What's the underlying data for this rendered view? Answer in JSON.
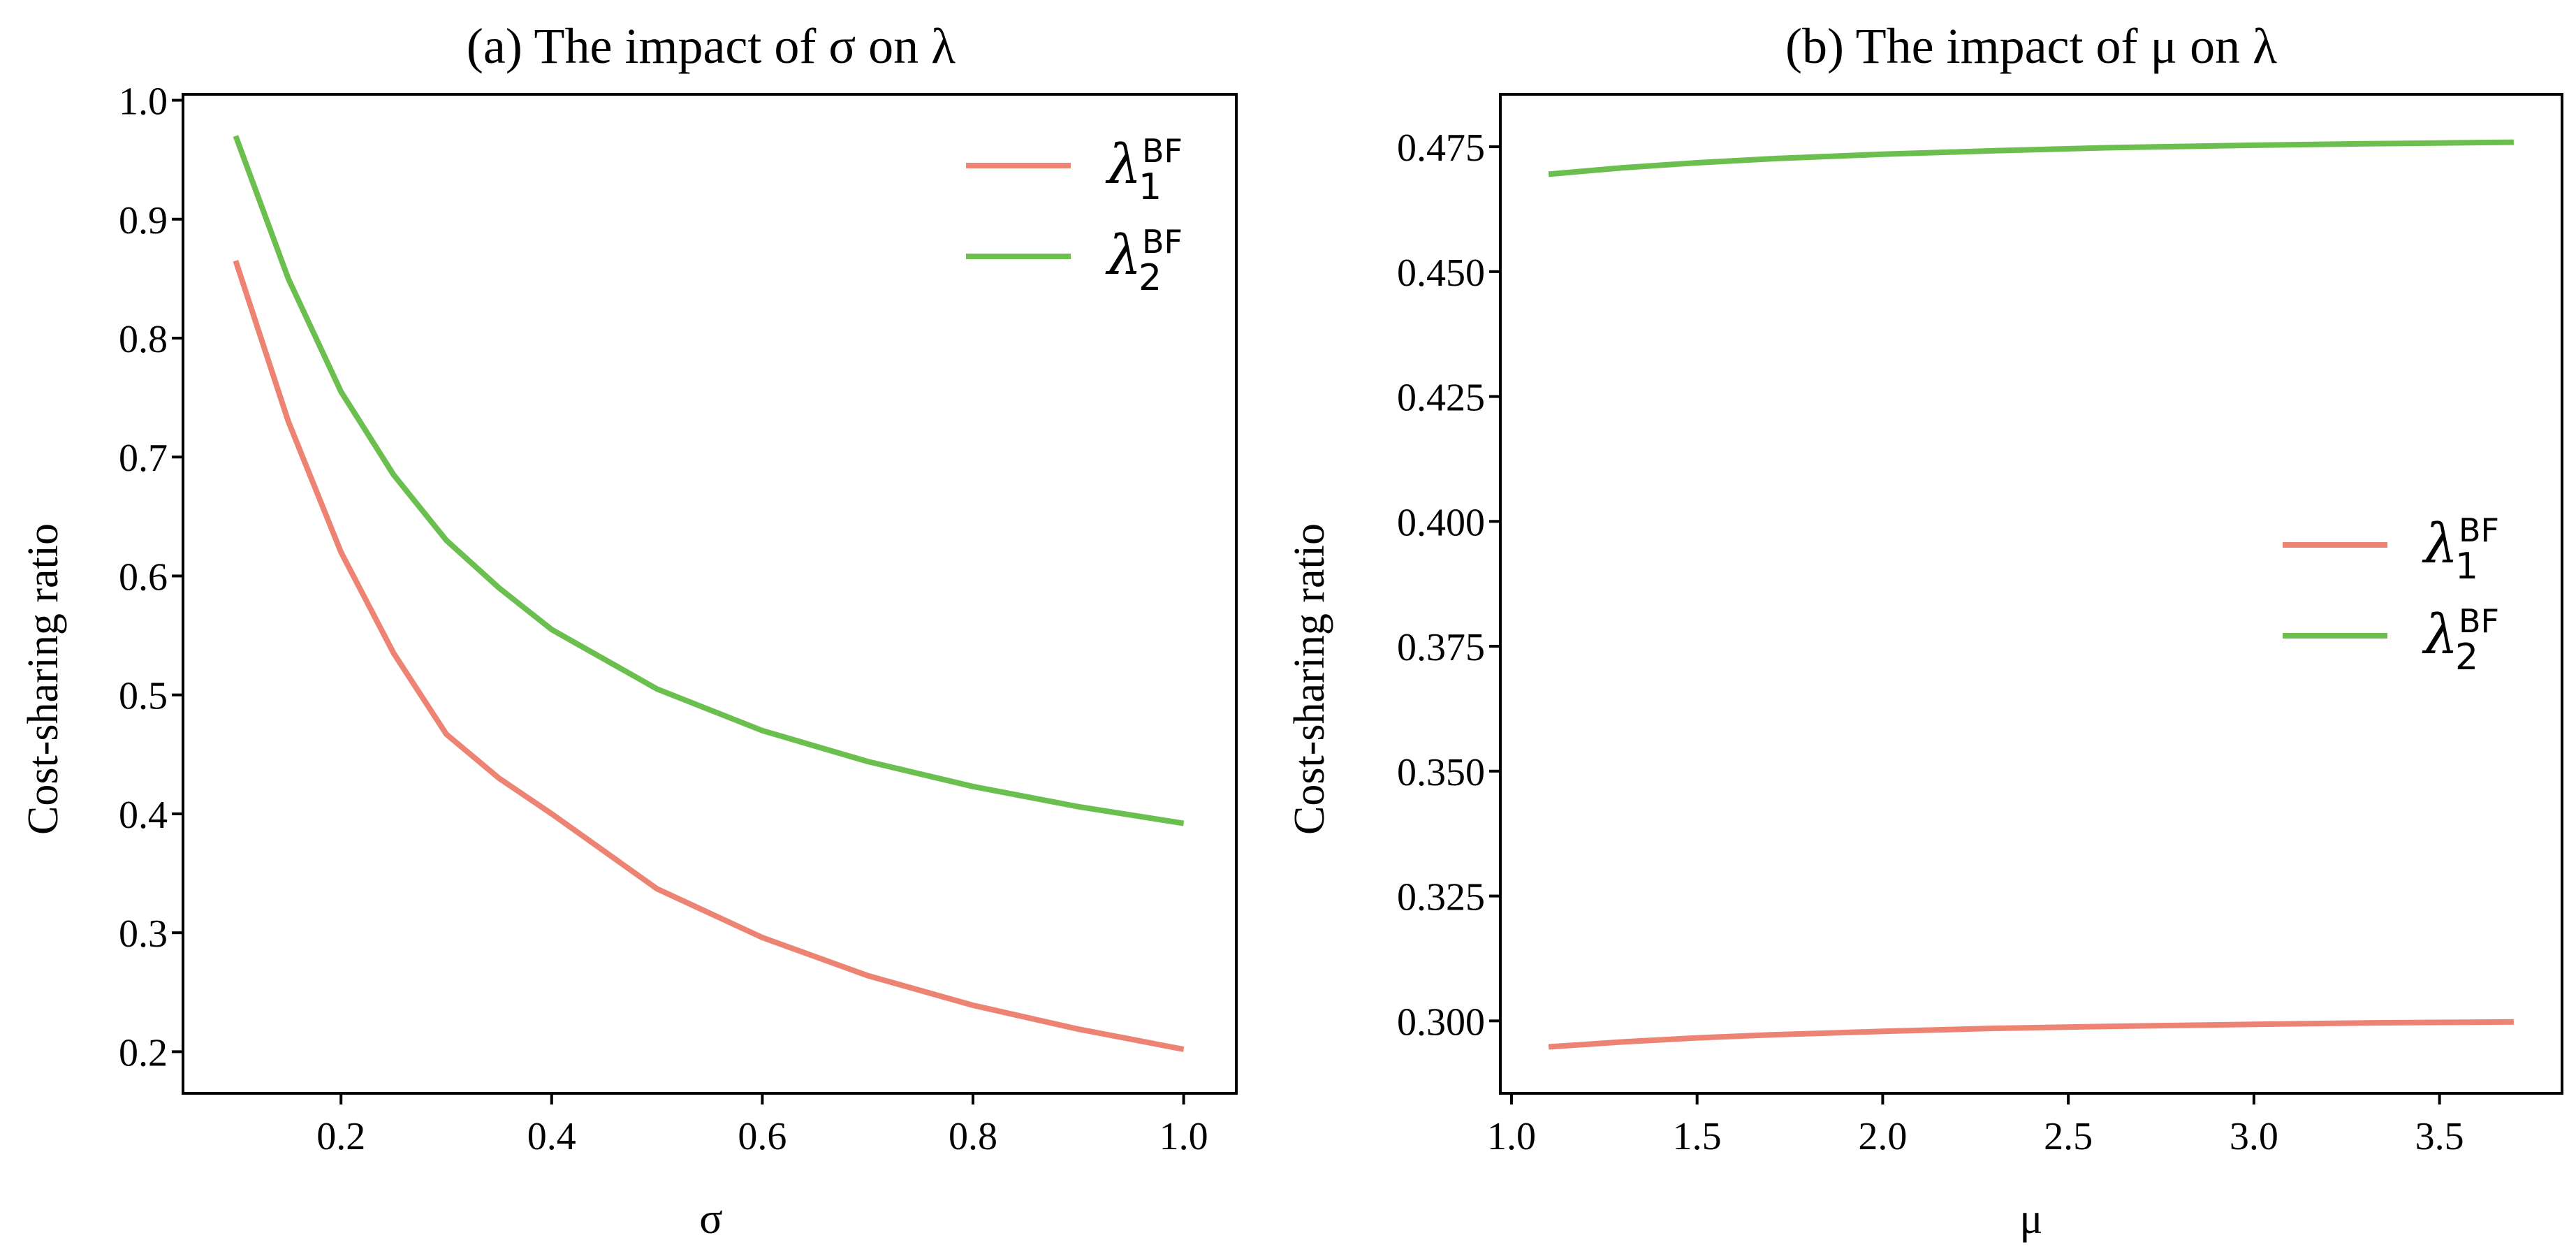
{
  "chart_data": [
    {
      "id": "a",
      "type": "line",
      "title": "(a) The impact of σ on λ",
      "xlabel": "σ",
      "ylabel": "Cost-sharing ratio",
      "xlim": [
        0.05,
        1.05
      ],
      "ylim": [
        0.165,
        1.005
      ],
      "xticks": [
        0.2,
        0.4,
        0.6,
        0.8,
        1.0
      ],
      "xtick_labels": [
        "0.2",
        "0.4",
        "0.6",
        "0.8",
        "1.0"
      ],
      "yticks": [
        0.2,
        0.3,
        0.4,
        0.5,
        0.6,
        0.7,
        0.8,
        0.9,
        1.0
      ],
      "ytick_labels": [
        "0.2",
        "0.3",
        "0.4",
        "0.5",
        "0.6",
        "0.7",
        "0.8",
        "0.9",
        "1.0"
      ],
      "legend_position": "top-right",
      "x": [
        0.1,
        0.15,
        0.2,
        0.25,
        0.3,
        0.35,
        0.4,
        0.5,
        0.6,
        0.7,
        0.8,
        0.9,
        1.0
      ],
      "series": [
        {
          "name": "λ_1^BF",
          "color": "#ed8373",
          "values": [
            0.865,
            0.73,
            0.62,
            0.535,
            0.467,
            0.43,
            0.4,
            0.337,
            0.296,
            0.264,
            0.239,
            0.219,
            0.202
          ]
        },
        {
          "name": "λ_2^BF",
          "color": "#6bbf4e",
          "values": [
            0.97,
            0.85,
            0.755,
            0.685,
            0.63,
            0.59,
            0.555,
            0.505,
            0.47,
            0.444,
            0.423,
            0.406,
            0.392
          ]
        }
      ]
    },
    {
      "id": "b",
      "type": "line",
      "title": "(b)  The impact of μ on λ",
      "xlabel": "μ",
      "ylabel": "Cost-sharing ratio",
      "xlim": [
        0.97,
        3.83
      ],
      "ylim": [
        0.2855,
        0.4855
      ],
      "xticks": [
        1.0,
        1.5,
        2.0,
        2.5,
        3.0,
        3.5
      ],
      "xtick_labels": [
        "1.0",
        "1.5",
        "2.0",
        "2.5",
        "3.0",
        "3.5"
      ],
      "yticks": [
        0.3,
        0.325,
        0.35,
        0.375,
        0.4,
        0.425,
        0.45,
        0.475
      ],
      "ytick_labels": [
        "0.300",
        "0.325",
        "0.350",
        "0.375",
        "0.400",
        "0.425",
        "0.450",
        "0.475"
      ],
      "legend_position": "center-right",
      "x": [
        1.1,
        1.3,
        1.5,
        1.7,
        2.0,
        2.3,
        2.6,
        3.0,
        3.3,
        3.7
      ],
      "series": [
        {
          "name": "λ_1^BF",
          "color": "#ed8373",
          "values": [
            0.2948,
            0.2958,
            0.2966,
            0.2972,
            0.2979,
            0.2985,
            0.2989,
            0.2993,
            0.2996,
            0.2998
          ]
        },
        {
          "name": "λ_2^BF",
          "color": "#6bbf4e",
          "values": [
            0.4695,
            0.4708,
            0.4718,
            0.4726,
            0.4735,
            0.4742,
            0.4748,
            0.4753,
            0.4756,
            0.4759
          ]
        }
      ]
    }
  ],
  "legend": {
    "symbol": "λ",
    "sup": "BF",
    "sub1": "1",
    "sub2": "2"
  }
}
